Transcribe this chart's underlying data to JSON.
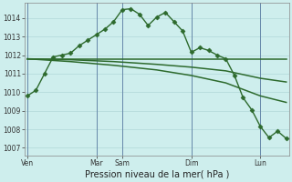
{
  "background_color": "#ceeeed",
  "grid_color": "#b0d8d8",
  "line_color": "#2d6a2d",
  "vline_color": "#6688aa",
  "ylim": [
    1006.6,
    1014.8
  ],
  "yticks": [
    1007,
    1008,
    1009,
    1010,
    1011,
    1012,
    1013,
    1014
  ],
  "xlabel": "Pression niveau de la mer( hPa )",
  "xtick_labels": [
    "Ven",
    "Mar",
    "Sam",
    "Dim",
    "Lun"
  ],
  "xtick_positions": [
    0,
    8,
    11,
    19,
    27
  ],
  "vlines": [
    0,
    8,
    11,
    19,
    27
  ],
  "n_points": 31,
  "series1_x": [
    0,
    1,
    2,
    3,
    4,
    5,
    6,
    7,
    8,
    9,
    10,
    11,
    12,
    13,
    14,
    15,
    16,
    17,
    18,
    19,
    20,
    21,
    22,
    23,
    24,
    25,
    26,
    27,
    28,
    29,
    30
  ],
  "series1_y": [
    1009.8,
    1010.1,
    1011.0,
    1011.9,
    1012.0,
    1012.1,
    1012.5,
    1012.8,
    1013.1,
    1013.4,
    1013.8,
    1014.45,
    1014.5,
    1014.2,
    1013.6,
    1014.05,
    1014.3,
    1013.8,
    1013.3,
    1012.15,
    1012.4,
    1012.25,
    1012.0,
    1011.8,
    1010.9,
    1009.7,
    1009.05,
    1008.15,
    1007.55,
    1007.9,
    1007.5
  ],
  "series2_x": [
    0,
    5,
    19,
    27,
    30
  ],
  "series2_y": [
    1011.8,
    1011.8,
    1011.8,
    1011.8,
    1011.8
  ],
  "series3_x": [
    0,
    5,
    10,
    15,
    19,
    23,
    27,
    30
  ],
  "series3_y": [
    1011.8,
    1011.75,
    1011.65,
    1011.5,
    1011.35,
    1011.15,
    1010.75,
    1010.55
  ],
  "series4_x": [
    0,
    5,
    10,
    15,
    19,
    23,
    27,
    30
  ],
  "series4_y": [
    1011.8,
    1011.65,
    1011.45,
    1011.2,
    1010.9,
    1010.5,
    1009.8,
    1009.45
  ]
}
